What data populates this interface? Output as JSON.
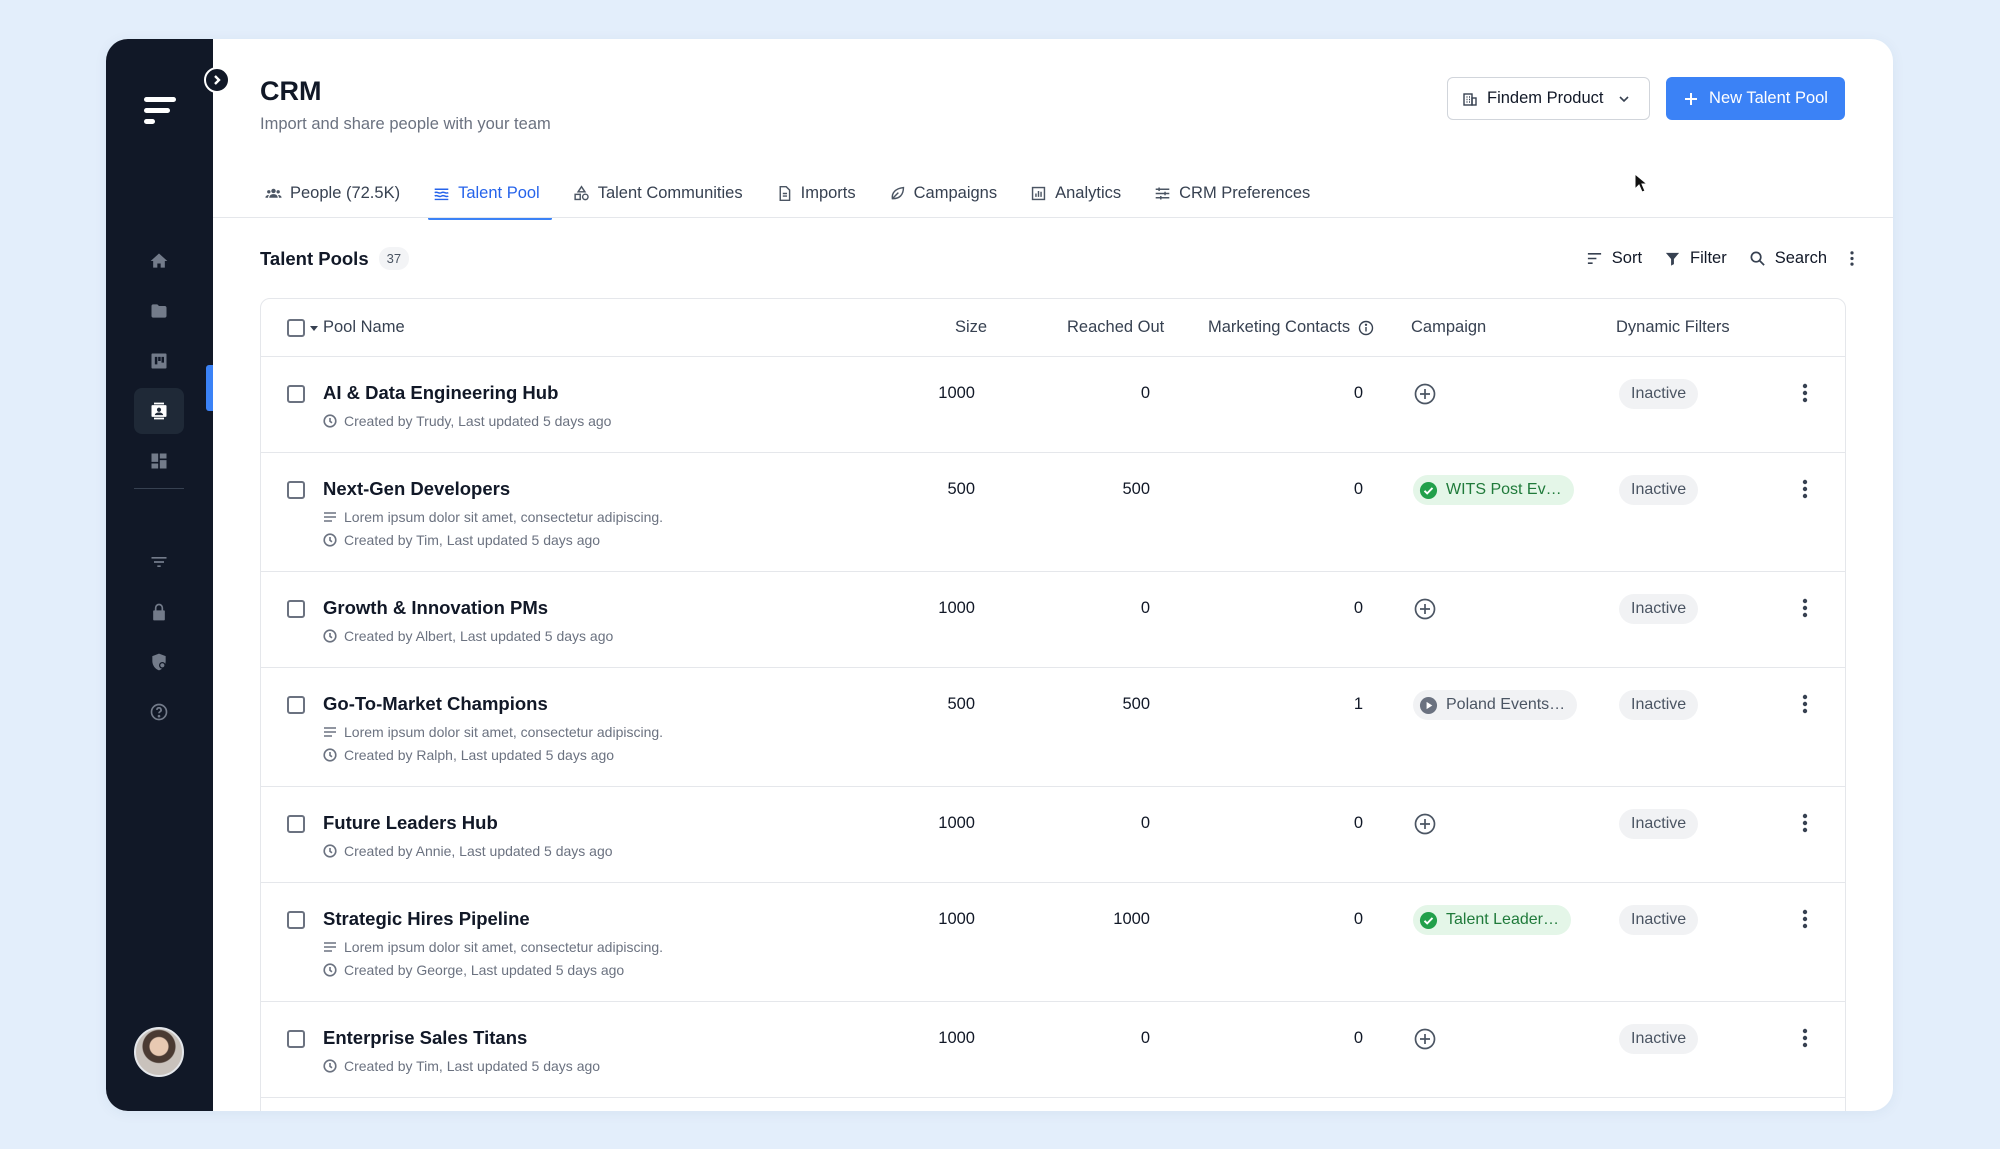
{
  "header": {
    "title": "CRM",
    "subtitle": "Import and share people with your team",
    "org_selector": "Findem Product",
    "new_button": "New Talent Pool"
  },
  "tabs": [
    {
      "label": "People (72.5K)",
      "icon": "people-icon"
    },
    {
      "label": "Talent Pool",
      "icon": "layers-icon",
      "active": true
    },
    {
      "label": "Talent Communities",
      "icon": "shapes-icon"
    },
    {
      "label": "Imports",
      "icon": "document-icon"
    },
    {
      "label": "Campaigns",
      "icon": "leaf-icon"
    },
    {
      "label": "Analytics",
      "icon": "chart-icon"
    },
    {
      "label": "CRM Preferences",
      "icon": "sliders-icon"
    }
  ],
  "section": {
    "title": "Talent Pools",
    "count": "37"
  },
  "toolbar": {
    "sort": "Sort",
    "filter": "Filter",
    "search": "Search"
  },
  "table": {
    "columns": {
      "pool_name": "Pool Name",
      "size": "Size",
      "reached_out": "Reached Out",
      "marketing_contacts": "Marketing Contacts",
      "campaign": "Campaign",
      "dynamic_filters": "Dynamic Filters"
    },
    "rows": [
      {
        "name": "AI & Data Engineering Hub",
        "description": "",
        "created": "Created by Trudy, Last updated 5 days ago",
        "size": "1000",
        "reached_out": "0",
        "marketing": "0",
        "campaign": "",
        "campaign_state": "none",
        "status": "Inactive"
      },
      {
        "name": "Next-Gen Developers",
        "description": "Lorem ipsum dolor sit amet, consectetur adipiscing.",
        "created": "Created by Tim, Last updated 5 days ago",
        "size": "500",
        "reached_out": "500",
        "marketing": "0",
        "campaign": "WITS Post Ev…",
        "campaign_state": "active",
        "status": "Inactive"
      },
      {
        "name": "Growth & Innovation PMs",
        "description": "",
        "created": "Created by Albert, Last updated 5 days ago",
        "size": "1000",
        "reached_out": "0",
        "marketing": "0",
        "campaign": "",
        "campaign_state": "none",
        "status": "Inactive"
      },
      {
        "name": "Go-To-Market Champions",
        "description": "Lorem ipsum dolor sit amet, consectetur adipiscing.",
        "created": "Created by Ralph, Last updated 5 days ago",
        "size": "500",
        "reached_out": "500",
        "marketing": "1",
        "campaign": "Poland Events…",
        "campaign_state": "paused",
        "status": "Inactive"
      },
      {
        "name": "Future Leaders Hub",
        "description": "",
        "created": "Created by Annie, Last updated 5 days ago",
        "size": "1000",
        "reached_out": "0",
        "marketing": "0",
        "campaign": "",
        "campaign_state": "none",
        "status": "Inactive"
      },
      {
        "name": "Strategic Hires Pipeline",
        "description": "Lorem ipsum dolor sit amet, consectetur adipiscing.",
        "created": "Created by George, Last updated 5 days ago",
        "size": "1000",
        "reached_out": "1000",
        "marketing": "0",
        "campaign": "Talent Leader…",
        "campaign_state": "active",
        "status": "Inactive"
      },
      {
        "name": "Enterprise Sales Titans",
        "description": "",
        "created": "Created by Tim, Last updated 5 days ago",
        "size": "1000",
        "reached_out": "0",
        "marketing": "0",
        "campaign": "",
        "campaign_state": "none",
        "status": "Inactive"
      }
    ]
  },
  "sidebar": {
    "items": [
      "home-icon",
      "folder-icon",
      "board-icon",
      "contacts-icon",
      "dashboard-icon",
      "filter-icon",
      "lock-icon",
      "shield-icon",
      "help-icon"
    ],
    "active_item": "contacts-icon"
  },
  "colors": {
    "accent": "#3b82f6",
    "sidebar": "#111827",
    "campaign_active": "#1f7a3a"
  }
}
